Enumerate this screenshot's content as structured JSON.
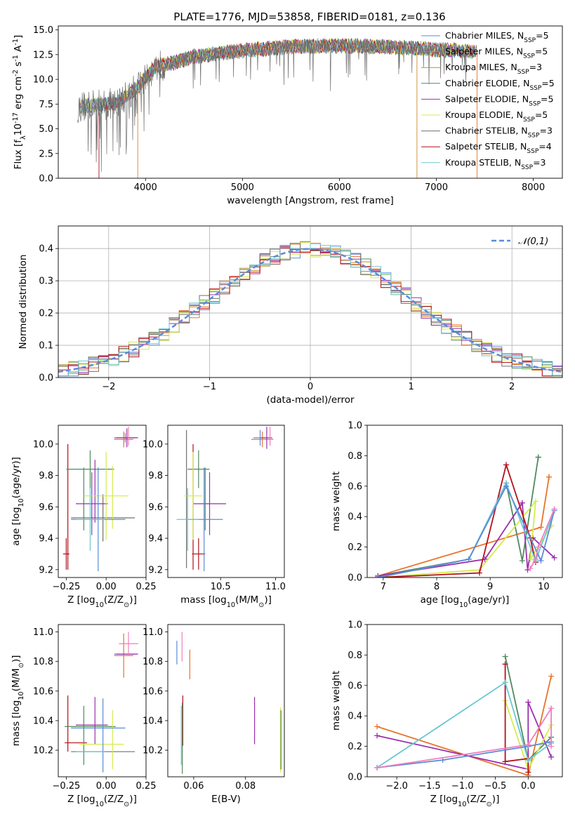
{
  "title": "PLATE=1776, MJD=53858, FIBERID=0181, z=0.136",
  "colors": {
    "Chabrier MILES": "#5b8bd9",
    "Salpeter MILES": "#e8742a",
    "Kroupa MILES": "#d0852f",
    "Chabrier ELODIE": "#4f8a5f",
    "Salpeter ELODIE": "#9b2fae",
    "Kroupa ELODIE": "#d4ec4c",
    "Chabrier STELIB": "#707070",
    "Salpeter STELIB": "#b3101b",
    "Kroupa STELIB": "#6cc6d2",
    "extra": "#ef7fbd"
  },
  "legend_labels": [
    "Chabrier MILES, N$_{SSP}$=5",
    "Salpeter MILES, N$_{SSP}$=5",
    "Kroupa MILES, N$_{SSP}$=3",
    "Chabrier ELODIE, N$_{SSP}$=5",
    "Salpeter ELODIE, N$_{SSP}$=5",
    "Kroupa ELODIE, N$_{SSP}$=5",
    "Chabrier STELIB, N$_{SSP}$=3",
    "Salpeter STELIB, N$_{SSP}$=4",
    "Kroupa STELIB, N$_{SSP}$=3"
  ],
  "chart_data": [
    {
      "id": "spectrum",
      "type": "line",
      "xlabel": "wavelength [Angstrom, rest frame]",
      "ylabel": "Flux [f$_\\lambda$10$^{-17}$ erg cm$^{-2}$ s$^{-1}$ A$^{-1}$]",
      "xlim": [
        3100,
        8300
      ],
      "ylim": [
        0,
        15.4
      ],
      "xticks": [
        4000,
        5000,
        6000,
        7000,
        8000
      ],
      "yticks": [
        0.0,
        2.5,
        5.0,
        7.5,
        10.0,
        12.5,
        15.0
      ],
      "continuum": {
        "x": [
          3300,
          3500,
          3700,
          3900,
          4000,
          4100,
          4300,
          4500,
          5000,
          5500,
          6000,
          6500,
          7000,
          7400
        ],
        "y": [
          7.2,
          7.4,
          7.6,
          9.0,
          10.2,
          11.3,
          11.7,
          12.3,
          12.9,
          13.3,
          13.4,
          13.3,
          13.0,
          12.8
        ]
      },
      "sharp_drops": [
        {
          "series": "Salpeter STELIB",
          "x": 3520
        },
        {
          "series": "Kroupa MILES",
          "x": 3920
        },
        {
          "series": "Kroupa MILES",
          "x": 6800
        },
        {
          "series": "Salpeter MILES",
          "x": 7420
        }
      ],
      "grid": false,
      "legend": "upper-right"
    },
    {
      "id": "residuals",
      "type": "step",
      "xlabel": "(data-model)/error",
      "ylabel": "Normed distribution",
      "xlim": [
        -2.5,
        2.5
      ],
      "ylim": [
        0,
        0.47
      ],
      "xticks": [
        -2,
        -1,
        0,
        1,
        2
      ],
      "yticks": [
        0.0,
        0.1,
        0.2,
        0.3,
        0.4
      ],
      "bin_width": 0.1,
      "reference": {
        "name": "$\\mathcal{N}(0,1)$",
        "mean": 0,
        "sigma": 1
      },
      "grid": true,
      "legend": "upper-right"
    },
    {
      "id": "age-vs-z",
      "type": "errorbar",
      "xlabel": "Z [log$_{10}$(Z/Z$_\\odot$)]",
      "ylabel": "age  [log$_{10}$(age/yr)]",
      "xlim": [
        -0.3,
        0.25
      ],
      "ylim": [
        9.15,
        10.12
      ],
      "xticks": [
        -0.25,
        0.0,
        0.25
      ],
      "yticks": [
        9.2,
        9.4,
        9.6,
        9.8,
        10.0
      ],
      "points": [
        {
          "s": "Salpeter STELIB",
          "x": -0.25,
          "xe": 0.02,
          "y": 9.3,
          "ye": 0.1
        },
        {
          "s": "Salpeter STELIB",
          "x": -0.24,
          "xe": 0.0,
          "y": 9.6,
          "ye": 0.4
        },
        {
          "s": "Chabrier ELODIE",
          "x": -0.1,
          "xe": 0.15,
          "y": 9.84,
          "ye": 0.12
        },
        {
          "s": "Chabrier ELODIE",
          "x": -0.14,
          "xe": 0.0,
          "y": 9.65,
          "ye": 0.2
        },
        {
          "s": "Chabrier STELIB",
          "x": -0.02,
          "xe": 0.2,
          "y": 9.53,
          "ye": 0.15
        },
        {
          "s": "Salpeter ELODIE",
          "x": -0.09,
          "xe": 0.1,
          "y": 9.62,
          "ye": 0.2
        },
        {
          "s": "Salpeter ELODIE",
          "x": -0.07,
          "xe": 0.0,
          "y": 9.7,
          "ye": 0.2
        },
        {
          "s": "Kroupa ELODIE",
          "x": 0.0,
          "xe": 0.14,
          "y": 9.67,
          "ye": 0.28
        },
        {
          "s": "Kroupa ELODIE",
          "x": 0.04,
          "xe": 0.0,
          "y": 9.66,
          "ye": 0.2
        },
        {
          "s": "Chabrier MILES",
          "x": -0.05,
          "xe": 0.17,
          "y": 9.52,
          "ye": 0.33
        },
        {
          "s": "Kroupa STELIB",
          "x": -0.1,
          "xe": 0.09,
          "y": 9.52,
          "ye": 0.2
        },
        {
          "s": "Chabrier MILES",
          "x": 0.12,
          "xe": 0.07,
          "y": 10.04,
          "ye": 0.03
        },
        {
          "s": "Salpeter MILES",
          "x": 0.11,
          "xe": 0.06,
          "y": 10.03,
          "ye": 0.05
        },
        {
          "s": "Salpeter ELODIE",
          "x": 0.13,
          "xe": 0.07,
          "y": 10.04,
          "ye": 0.06
        },
        {
          "s": "extra",
          "x": 0.14,
          "xe": 0.0,
          "y": 10.05,
          "ye": 0.06
        }
      ]
    },
    {
      "id": "age-vs-mass",
      "type": "errorbar",
      "xlabel": "mass [log$_{10}$(M/M$_\\odot$)]",
      "xlim": [
        10.02,
        11.08
      ],
      "ylim": [
        9.15,
        10.12
      ],
      "xticks": [
        10.5,
        11.0
      ],
      "yticks": [
        9.2,
        9.4,
        9.6,
        9.8,
        10.0
      ],
      "points": [
        {
          "s": "Salpeter STELIB",
          "x": 10.3,
          "xe": 0.06,
          "y": 9.3,
          "ye": 0.1
        },
        {
          "s": "Salpeter STELIB",
          "x": 10.25,
          "xe": 0.0,
          "y": 9.6,
          "ye": 0.4
        },
        {
          "s": "Chabrier ELODIE",
          "x": 10.3,
          "xe": 0.1,
          "y": 9.84,
          "ye": 0.12
        },
        {
          "s": "Chabrier ELODIE",
          "x": 10.36,
          "xe": 0.0,
          "y": 9.65,
          "ye": 0.2
        },
        {
          "s": "Chabrier STELIB",
          "x": 10.19,
          "xe": 0.0,
          "y": 9.65,
          "ye": 0.44
        },
        {
          "s": "Salpeter ELODIE",
          "x": 10.4,
          "xe": 0.15,
          "y": 9.62,
          "ye": 0.2
        },
        {
          "s": "Kroupa ELODIE",
          "x": 10.25,
          "xe": 0.08,
          "y": 9.67,
          "ye": 0.28
        },
        {
          "s": "Chabrier MILES",
          "x": 10.35,
          "xe": 0.17,
          "y": 9.52,
          "ye": 0.33
        },
        {
          "s": "Kroupa STELIB",
          "x": 10.2,
          "xe": 0.1,
          "y": 9.52,
          "ye": 0.2
        },
        {
          "s": "Salpeter MILES",
          "x": 10.88,
          "xe": 0.1,
          "y": 10.03,
          "ye": 0.05
        },
        {
          "s": "Chabrier MILES",
          "x": 10.86,
          "xe": 0.06,
          "y": 10.04,
          "ye": 0.05
        },
        {
          "s": "Salpeter ELODIE",
          "x": 10.92,
          "xe": 0.05,
          "y": 10.04,
          "ye": 0.07
        },
        {
          "s": "extra",
          "x": 10.95,
          "xe": 0.0,
          "y": 10.05,
          "ye": 0.06
        }
      ]
    },
    {
      "id": "mass-vs-z",
      "type": "errorbar",
      "xlabel": "Z [log$_{10}$(Z/Z$_\\odot$)]",
      "ylabel": "mass [log$_{10}$(M/M$_\\odot$)]",
      "xlim": [
        -0.3,
        0.25
      ],
      "ylim": [
        10.02,
        11.05
      ],
      "xticks": [
        -0.25,
        0.0,
        0.25
      ],
      "yticks": [
        10.2,
        10.4,
        10.6,
        10.8,
        11.0
      ],
      "points": [
        {
          "s": "Salpeter STELIB",
          "x": -0.19,
          "xe": 0.07,
          "y": 10.25,
          "ye": 0.0
        },
        {
          "s": "Salpeter STELIB",
          "x": -0.24,
          "xe": 0.0,
          "y": 10.38,
          "ye": 0.19
        },
        {
          "s": "Chabrier ELODIE",
          "x": -0.1,
          "xe": 0.16,
          "y": 10.36,
          "ye": 0.0
        },
        {
          "s": "Chabrier ELODIE",
          "x": -0.14,
          "xe": 0.0,
          "y": 10.3,
          "ye": 0.2
        },
        {
          "s": "Chabrier STELIB",
          "x": -0.02,
          "xe": 0.2,
          "y": 10.19,
          "ye": 0.0
        },
        {
          "s": "Salpeter ELODIE",
          "x": -0.09,
          "xe": 0.1,
          "y": 10.37,
          "ye": 0.0
        },
        {
          "s": "Salpeter ELODIE",
          "x": -0.07,
          "xe": 0.0,
          "y": 10.4,
          "ye": 0.16
        },
        {
          "s": "Kroupa ELODIE",
          "x": -0.03,
          "xe": 0.14,
          "y": 10.24,
          "ye": 0.0
        },
        {
          "s": "Kroupa ELODIE",
          "x": 0.04,
          "xe": 0.0,
          "y": 10.27,
          "ye": 0.2
        },
        {
          "s": "Chabrier MILES",
          "x": -0.05,
          "xe": 0.17,
          "y": 10.35,
          "ye": 0.0
        },
        {
          "s": "Chabrier MILES",
          "x": -0.02,
          "xe": 0.0,
          "y": 10.3,
          "ye": 0.25
        },
        {
          "s": "Kroupa STELIB",
          "x": -0.1,
          "xe": 0.09,
          "y": 10.19,
          "ye": 0.0
        },
        {
          "s": "Chabrier MILES",
          "x": 0.12,
          "xe": 0.07,
          "y": 10.85,
          "ye": 0.0
        },
        {
          "s": "Salpeter MILES",
          "x": 0.11,
          "xe": 0.06,
          "y": 10.84,
          "ye": 0.15
        },
        {
          "s": "Salpeter ELODIE",
          "x": 0.13,
          "xe": 0.07,
          "y": 10.85,
          "ye": 0.0
        },
        {
          "s": "extra",
          "x": 0.14,
          "xe": 0.06,
          "y": 10.92,
          "ye": 0.08
        }
      ]
    },
    {
      "id": "mass-vs-ebv",
      "type": "errorbar",
      "xlabel": "E(B-V)",
      "xlim": [
        0.05,
        0.095
      ],
      "ylim": [
        10.02,
        11.05
      ],
      "xticks": [
        0.06,
        0.08
      ],
      "yticks": [
        10.2,
        10.4,
        10.6,
        10.8,
        11.0
      ],
      "points": [
        {
          "s": "Chabrier MILES",
          "x": 0.0535,
          "xe": 0.0,
          "y": 10.86,
          "ye": 0.08
        },
        {
          "s": "extra",
          "x": 0.0555,
          "xe": 0.0,
          "y": 10.9,
          "ye": 0.1
        },
        {
          "s": "Salpeter MILES",
          "x": 0.0585,
          "xe": 0.0,
          "y": 10.78,
          "ye": 0.1
        },
        {
          "s": "Salpeter STELIB",
          "x": 0.0558,
          "xe": 0.0,
          "y": 10.4,
          "ye": 0.17
        },
        {
          "s": "Chabrier ELODIE",
          "x": 0.0556,
          "xe": 0.0,
          "y": 10.28,
          "ye": 0.24
        },
        {
          "s": "Kroupa STELIB",
          "x": 0.0552,
          "xe": 0.0,
          "y": 10.3,
          "ye": 0.2
        },
        {
          "s": "Salpeter ELODIE",
          "x": 0.0835,
          "xe": 0.0,
          "y": 10.4,
          "ye": 0.16
        },
        {
          "s": "Kroupa ELODIE",
          "x": 0.0935,
          "xe": 0.0,
          "y": 10.27,
          "ye": 0.22
        },
        {
          "s": "Chabrier ELODIE",
          "x": 0.0937,
          "xe": 0.0,
          "y": 10.27,
          "ye": 0.2
        }
      ]
    },
    {
      "id": "weight-vs-age",
      "type": "line",
      "xlabel": "age  [log$_{10}$(age/yr)]",
      "ylabel": "mass weight",
      "xlim": [
        6.7,
        10.35
      ],
      "ylim": [
        0,
        1.0
      ],
      "xticks": [
        7,
        8,
        9,
        10
      ],
      "yticks": [
        0.0,
        0.2,
        0.4,
        0.6,
        0.8,
        1.0
      ],
      "series": [
        {
          "s": "Salpeter MILES",
          "x": [
            6.9,
            9.95,
            10.1,
            10.1
          ],
          "y": [
            0.01,
            0.33,
            0.66,
            0.66
          ]
        },
        {
          "s": "Chabrier ELODIE",
          "x": [
            6.9,
            8.6,
            9.3,
            9.6,
            9.9,
            9.9
          ],
          "y": [
            0.01,
            0.12,
            0.62,
            0.11,
            0.79,
            0.79
          ]
        },
        {
          "s": "Salpeter ELODIE",
          "x": [
            6.9,
            8.9,
            9.6,
            9.7,
            9.8,
            10.2
          ],
          "y": [
            0.01,
            0.12,
            0.49,
            0.05,
            0.26,
            0.13
          ]
        },
        {
          "s": "Kroupa ELODIE",
          "x": [
            6.9,
            8.8,
            9.85,
            9.75,
            10.15
          ],
          "y": [
            0.0,
            0.05,
            0.5,
            0.12,
            0.34
          ]
        },
        {
          "s": "Salpeter STELIB",
          "x": [
            6.9,
            8.8,
            9.3,
            9.75,
            9.85
          ],
          "y": [
            0.0,
            0.03,
            0.74,
            0.26,
            0.1
          ]
        },
        {
          "s": "Kroupa STELIB",
          "x": [
            6.9,
            8.6,
            9.3,
            9.85,
            10.2
          ],
          "y": [
            0.0,
            0.12,
            0.62,
            0.11,
            0.44
          ]
        },
        {
          "s": "Chabrier MILES",
          "x": [
            6.9,
            8.6,
            9.3,
            9.95,
            10.2
          ],
          "y": [
            0.0,
            0.12,
            0.6,
            0.11,
            0.44
          ]
        },
        {
          "s": "extra",
          "x": [
            9.75,
            9.85,
            9.9,
            10.2
          ],
          "y": [
            0.06,
            0.12,
            0.2,
            0.45
          ]
        }
      ]
    },
    {
      "id": "weight-vs-z",
      "type": "line",
      "xlabel": "Z [log$_{10}$(Z/Z$_\\odot$)]",
      "ylabel": "mass weight",
      "xlim": [
        -2.45,
        0.52
      ],
      "ylim": [
        0,
        1.0
      ],
      "xticks": [
        -2.0,
        -1.5,
        -1.0,
        -0.5,
        0.0
      ],
      "yticks": [
        0.0,
        0.2,
        0.4,
        0.6,
        0.8,
        1.0
      ],
      "series": [
        {
          "s": "Salpeter MILES",
          "x": [
            -2.3,
            0.0,
            0.35
          ],
          "y": [
            0.33,
            0.01,
            0.66
          ]
        },
        {
          "s": "Chabrier ELODIE",
          "x": [
            -0.35,
            0.0,
            0.35
          ],
          "y": [
            0.79,
            0.11,
            0.26
          ]
        },
        {
          "s": "Salpeter ELODIE",
          "x": [
            -2.3,
            0.0,
            0.0,
            0.35
          ],
          "y": [
            0.27,
            0.05,
            0.49,
            0.13
          ]
        },
        {
          "s": "Kroupa ELODIE",
          "x": [
            -0.35,
            0.0,
            0.35
          ],
          "y": [
            0.5,
            0.05,
            0.34
          ]
        },
        {
          "s": "Salpeter STELIB",
          "x": [
            -0.35,
            -0.35,
            0.0,
            0.0
          ],
          "y": [
            0.74,
            0.1,
            0.12,
            0.03
          ]
        },
        {
          "s": "Kroupa STELIB",
          "x": [
            -2.3,
            -0.35,
            0.0,
            0.35
          ],
          "y": [
            0.06,
            0.62,
            0.11,
            0.22
          ]
        },
        {
          "s": "Chabrier MILES",
          "x": [
            -2.3,
            -1.3,
            0.0,
            0.35
          ],
          "y": [
            0.06,
            0.11,
            0.2,
            0.23
          ]
        },
        {
          "s": "extra",
          "x": [
            -2.3,
            0.0,
            0.35,
            0.35
          ],
          "y": [
            0.06,
            0.21,
            0.45,
            0.2
          ]
        }
      ]
    }
  ]
}
